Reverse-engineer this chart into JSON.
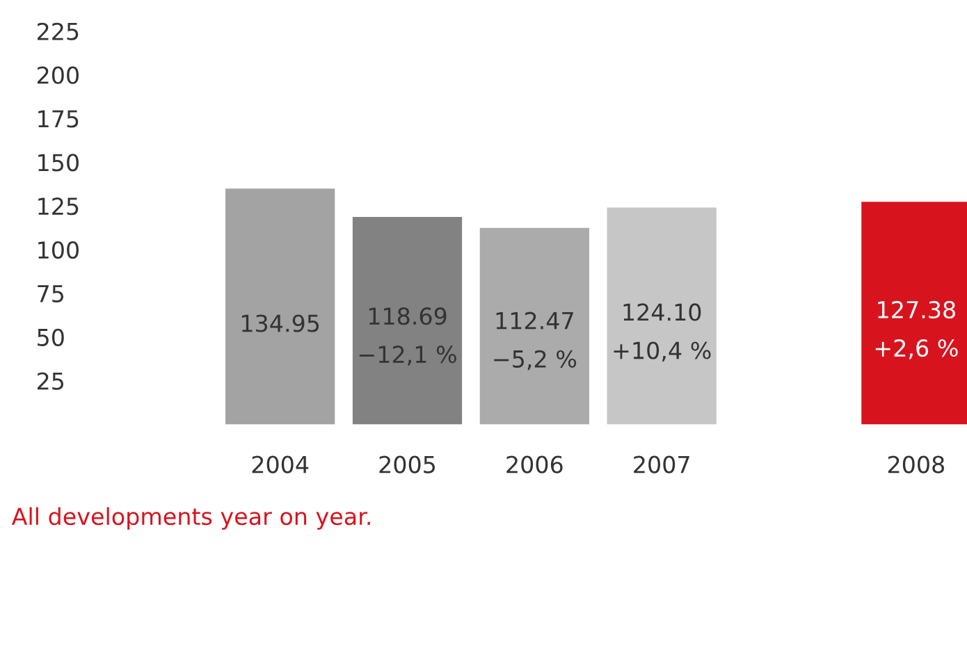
{
  "chart_data": {
    "type": "bar",
    "categories": [
      "2004",
      "2005",
      "2006",
      "2007",
      null,
      "2008"
    ],
    "values": [
      134.95,
      118.69,
      112.47,
      124.1,
      null,
      127.38
    ],
    "colors": [
      "#a3a3a3",
      "#828282",
      "#ababab",
      "#c6c6c6",
      "#c6c6c6",
      "#d7141e"
    ],
    "value_labels": [
      "134.95",
      "118.69\n−12,1 %",
      "112.47\n−5,2 %",
      "124.10\n+10,4 %",
      null,
      "127.38\n+2,6 %"
    ],
    "ylim": [
      0,
      225
    ],
    "yticks": [
      25,
      50,
      75,
      100,
      125,
      150,
      175,
      200,
      225
    ],
    "grid": false,
    "annotations": [
      "All developments year on year."
    ]
  }
}
